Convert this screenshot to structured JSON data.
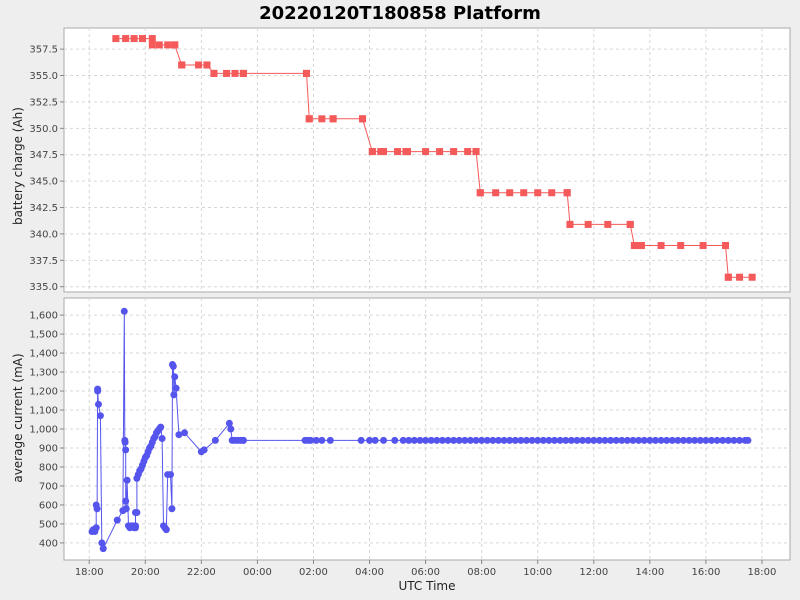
{
  "chart_data": {
    "title": "20220120T180858 Platform",
    "xlabel": "UTC Time",
    "x_ticks": [
      "18:00",
      "20:00",
      "22:00",
      "00:00",
      "02:00",
      "04:00",
      "06:00",
      "08:00",
      "10:00",
      "12:00",
      "14:00",
      "16:00",
      "18:00"
    ],
    "x_tick_hours": [
      18,
      20,
      22,
      24,
      26,
      28,
      30,
      32,
      34,
      36,
      38,
      40,
      42
    ],
    "xlim_hours": [
      17.1,
      43.0
    ],
    "grid": true,
    "panels": [
      {
        "type": "line",
        "ylabel": "battery charge (Ah)",
        "ylim": [
          334.5,
          359.5
        ],
        "y_ticks": [
          335.0,
          337.5,
          340.0,
          342.5,
          345.0,
          347.5,
          350.0,
          352.5,
          355.0,
          357.5
        ],
        "y_tick_labels": [
          "335.0",
          "337.5",
          "340.0",
          "342.5",
          "345.0",
          "347.5",
          "350.0",
          "352.5",
          "355.0",
          "357.5"
        ],
        "color": "#f55a5a",
        "series": [
          {
            "x": [
              18.95,
              19.3,
              19.6,
              19.9,
              20.25
            ],
            "y": [
              358.5,
              358.5,
              358.5,
              358.5,
              358.5
            ]
          },
          {
            "x": [
              20.25,
              20.5,
              20.8,
              21.05
            ],
            "y": [
              357.9,
              357.9,
              357.9,
              357.9
            ]
          },
          {
            "x": [
              21.05,
              21.3
            ],
            "y": [
              357.9,
              356.0
            ]
          },
          {
            "x": [
              21.3,
              21.9,
              22.2
            ],
            "y": [
              356.0,
              356.0,
              356.0
            ]
          },
          {
            "x": [
              22.2,
              22.45
            ],
            "y": [
              356.0,
              355.2
            ]
          },
          {
            "x": [
              22.45,
              22.9,
              23.2,
              23.5
            ],
            "y": [
              355.2,
              355.2,
              355.2,
              355.2
            ]
          },
          {
            "x": [
              23.5,
              25.75
            ],
            "y": [
              355.2,
              355.2
            ]
          },
          {
            "x": [
              25.75,
              25.85
            ],
            "y": [
              355.2,
              350.9
            ]
          },
          {
            "x": [
              25.85,
              26.3,
              26.7
            ],
            "y": [
              350.9,
              350.9,
              350.9
            ]
          },
          {
            "x": [
              26.7,
              27.75
            ],
            "y": [
              350.9,
              350.9
            ]
          },
          {
            "x": [
              27.75,
              28.1
            ],
            "y": [
              350.9,
              347.8
            ]
          },
          {
            "x": [
              28.1,
              28.4
            ],
            "y": [
              347.8,
              347.8
            ]
          },
          {
            "x": [
              28.5,
              29.0,
              29.3
            ],
            "y": [
              347.8,
              347.8,
              347.8
            ]
          },
          {
            "x": [
              29.3,
              29.35
            ],
            "y": [
              347.8,
              347.8
            ]
          },
          {
            "x": [
              29.35,
              30.0,
              30.5,
              31.0,
              31.5,
              31.8
            ],
            "y": [
              347.8,
              347.8,
              347.8,
              347.8,
              347.8,
              347.8
            ]
          },
          {
            "x": [
              31.8,
              31.95
            ],
            "y": [
              347.8,
              343.9
            ]
          },
          {
            "x": [
              31.95,
              32.5,
              33.0,
              33.5,
              34.0,
              34.5,
              35.05
            ],
            "y": [
              343.9,
              343.9,
              343.9,
              343.9,
              343.9,
              343.9,
              343.9
            ]
          },
          {
            "x": [
              35.05,
              35.15
            ],
            "y": [
              343.9,
              340.9
            ]
          },
          {
            "x": [
              35.15,
              35.8,
              36.5,
              37.3
            ],
            "y": [
              340.9,
              340.9,
              340.9,
              340.9
            ]
          },
          {
            "x": [
              37.3,
              37.45
            ],
            "y": [
              340.9,
              338.9
            ]
          },
          {
            "x": [
              37.45,
              37.6
            ],
            "y": [
              338.9,
              338.9
            ]
          },
          {
            "x": [
              37.7,
              38.4,
              39.1,
              39.9,
              40.7
            ],
            "y": [
              338.9,
              338.9,
              338.9,
              338.9,
              338.9
            ]
          },
          {
            "x": [
              40.7,
              40.8
            ],
            "y": [
              338.9,
              335.9
            ]
          },
          {
            "x": [
              40.8,
              41.2,
              41.65
            ],
            "y": [
              335.9,
              335.9,
              335.9
            ]
          }
        ]
      },
      {
        "type": "line",
        "ylabel": "average current (mA)",
        "ylim": [
          310,
          1690
        ],
        "y_ticks": [
          400,
          500,
          600,
          700,
          800,
          900,
          1000,
          1100,
          1200,
          1300,
          1400,
          1500,
          1600
        ],
        "y_tick_labels": [
          "400",
          "500",
          "600",
          "700",
          "800",
          "900",
          "1,000",
          "1,100",
          "1,200",
          "1,300",
          "1,400",
          "1,500",
          "1,600"
        ],
        "color": "#5555ee",
        "series": [
          {
            "x": [
              18.1,
              18.15,
              18.2,
              18.25,
              18.25,
              18.28,
              18.3,
              18.3,
              18.33,
              18.4,
              18.45,
              18.5,
              19.0,
              19.2,
              19.25,
              19.27,
              19.28,
              19.3,
              19.3,
              19.32,
              19.35,
              19.4,
              19.45,
              19.5,
              19.55,
              19.6,
              19.65,
              19.65,
              19.65,
              19.7,
              19.7,
              19.75,
              19.8,
              19.85,
              19.9,
              19.95,
              20.0,
              20.05,
              20.1,
              20.15,
              20.2,
              20.25,
              20.3,
              20.35,
              20.4,
              20.45,
              20.5,
              20.55,
              20.6,
              20.65,
              20.7,
              20.75,
              20.8,
              20.9,
              20.95,
              20.97,
              21.0,
              21.02,
              21.05,
              21.1,
              21.2,
              21.4,
              22.0,
              22.1,
              22.5,
              23.0,
              23.05,
              23.1,
              23.2,
              23.3,
              23.4,
              23.5
            ],
            "y": [
              460,
              470,
              460,
              480,
              600,
              580,
              1210,
              1200,
              1130,
              1070,
              400,
              370,
              520,
              570,
              1620,
              940,
              930,
              890,
              620,
              580,
              730,
              490,
              480,
              490,
              490,
              480,
              490,
              480,
              560,
              560,
              740,
              760,
              780,
              790,
              810,
              830,
              850,
              860,
              880,
              900,
              910,
              930,
              950,
              960,
              980,
              990,
              1000,
              1010,
              950,
              490,
              480,
              470,
              760,
              760,
              580,
              1340,
              1330,
              1180,
              1275,
              1215,
              970,
              980,
              880,
              890,
              940,
              1030,
              1000,
              940,
              940,
              940,
              940,
              940
            ]
          },
          {
            "x": [
              23.5,
              25.7,
              25.8,
              25.9,
              26.1,
              26.3,
              26.6,
              27.7,
              28.0,
              28.2,
              28.5,
              28.9,
              29.2,
              29.4,
              29.6,
              29.8,
              30.0,
              30.2,
              30.4,
              30.6,
              30.8,
              31.0,
              31.2,
              31.4,
              31.6,
              31.8,
              32.0,
              32.2,
              32.4,
              32.6,
              32.8,
              33.0,
              33.2,
              33.4,
              33.6,
              33.8,
              34.0,
              34.2,
              34.4,
              34.6,
              34.8,
              35.0,
              35.2,
              35.4,
              35.6,
              35.8,
              36.0,
              36.2,
              36.4,
              36.6,
              36.8,
              37.0,
              37.2,
              37.4,
              37.6,
              37.8,
              38.0,
              38.2,
              38.4,
              38.6,
              38.8,
              39.0,
              39.2,
              39.4,
              39.6,
              39.8,
              40.0,
              40.2,
              40.4,
              40.6,
              40.8,
              41.0,
              41.2,
              41.4,
              41.5
            ],
            "y": [
              940,
              940,
              940,
              940,
              940,
              940,
              940,
              940,
              940,
              940,
              940,
              940,
              940,
              940,
              940,
              940,
              940,
              940,
              940,
              940,
              940,
              940,
              940,
              940,
              940,
              940,
              940,
              940,
              940,
              940,
              940,
              940,
              940,
              940,
              940,
              940,
              940,
              940,
              940,
              940,
              940,
              940,
              940,
              940,
              940,
              940,
              940,
              940,
              940,
              940,
              940,
              940,
              940,
              940,
              940,
              940,
              940,
              940,
              940,
              940,
              940,
              940,
              940,
              940,
              940,
              940,
              940,
              940,
              940,
              940,
              940,
              940,
              940,
              940,
              940
            ]
          }
        ]
      }
    ]
  }
}
